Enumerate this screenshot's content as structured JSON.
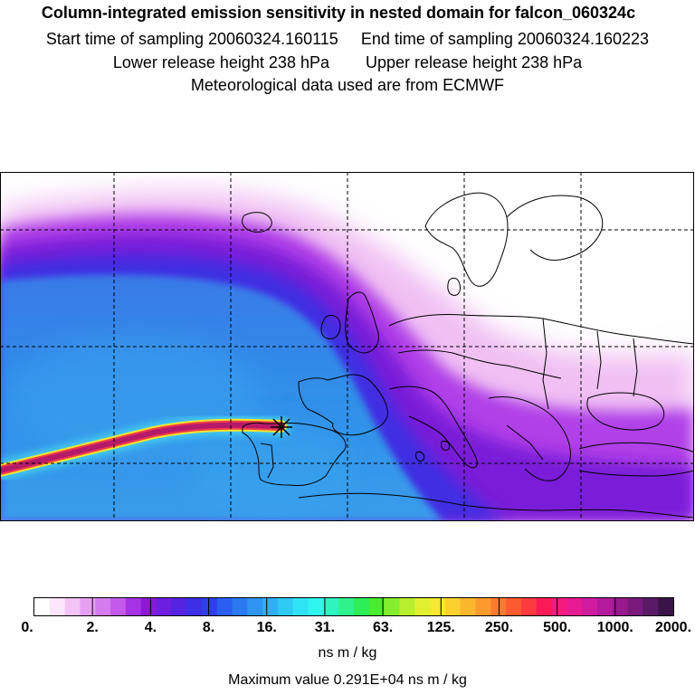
{
  "header": {
    "title": "Column-integrated emission sensitivity in nested domain for falcon_060324c",
    "start_label": "Start time of sampling 20060324.160115",
    "end_label": "End time of sampling 20060324.160223",
    "lower_label": "Lower release height  238 hPa",
    "upper_label": "Upper release height  238 hPa",
    "met_label": "Meteorological data used are from ECMWF"
  },
  "map": {
    "release_marker": "star-marker",
    "colors": {
      "plume_core": "#c0185a",
      "band_purple": "#8a1ad8",
      "band_blue": "#3a2fe0",
      "ocean_blue": "#2f8fe8"
    }
  },
  "colorbar": {
    "ticks": [
      "0.",
      "2.",
      "4.",
      "8.",
      "16.",
      "31.",
      "63.",
      "125.",
      "250.",
      "500.",
      "1000.",
      "2000."
    ],
    "colors": [
      "#ffffff",
      "#fbe6fb",
      "#f2c4f5",
      "#e6a0f2",
      "#d47cef",
      "#c35aeb",
      "#a632e6",
      "#8a1ad8",
      "#6e1ee0",
      "#5524e2",
      "#3c2fe6",
      "#2e3fe8",
      "#2a5ef0",
      "#2c7af2",
      "#2e95f2",
      "#2fb0f4",
      "#2ecaf4",
      "#2ee4f4",
      "#2ef6ee",
      "#2ef4c0",
      "#2ef28c",
      "#2eee58",
      "#4aec2e",
      "#86ec2e",
      "#b8ee2e",
      "#e0f02e",
      "#f6e82e",
      "#fcd02e",
      "#fcb62e",
      "#fc9a2e",
      "#fc7a2e",
      "#fc5a30",
      "#fc3a40",
      "#fc1a56",
      "#f41a80",
      "#e81a94",
      "#d01aa0",
      "#b41a9c",
      "#981a8e",
      "#7a1a7c",
      "#5a1a66",
      "#3a1448"
    ],
    "unit": "ns m / kg",
    "max_value": "Maximum value  0.291E+04 ns m / kg"
  }
}
